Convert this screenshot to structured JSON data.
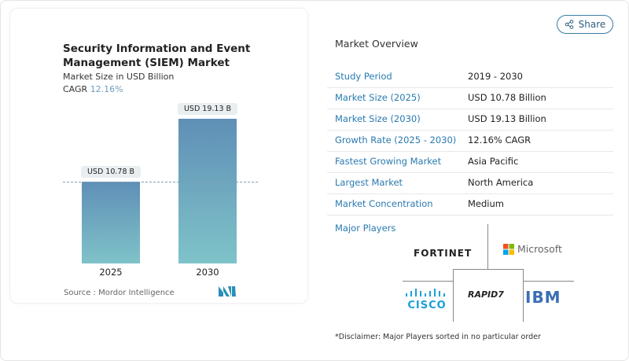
{
  "chart_data": {
    "type": "bar",
    "title": "Security Information and Event Management (SIEM) Market",
    "subtitle": "Market Size in USD Billion",
    "cagr_label": "CAGR",
    "cagr_value": "12.16%",
    "categories": [
      "2025",
      "2030"
    ],
    "values": [
      10.78,
      19.13
    ],
    "data_labels": [
      "USD 10.78 B",
      "USD 19.13 B"
    ],
    "ylim": [
      0,
      19.13
    ],
    "grid": false,
    "bar_color_top": "#5f8fb6",
    "bar_color_bottom": "#7fc3c9"
  },
  "source": "Source :  Mordor Intelligence",
  "share_label": "Share",
  "overview": {
    "title": "Market Overview",
    "rows": [
      {
        "label": "Study Period",
        "value": "2019 - 2030"
      },
      {
        "label": "Market Size (2025)",
        "value": "USD 10.78 Billion"
      },
      {
        "label": "Market Size (2030)",
        "value": "USD 19.13 Billion"
      },
      {
        "label": "Growth Rate (2025 - 2030)",
        "value": "12.16% CAGR"
      },
      {
        "label": "Fastest Growing Market",
        "value": "Asia Pacific"
      },
      {
        "label": "Largest Market",
        "value": "North America"
      },
      {
        "label": "Market Concentration",
        "value": "Medium"
      }
    ]
  },
  "players": {
    "title": "Major Players",
    "logos": [
      "FORTINET",
      "Microsoft",
      "CISCO",
      "RAPID7",
      "IBM"
    ],
    "disclaimer": "*Disclaimer: Major Players sorted in no particular order"
  }
}
